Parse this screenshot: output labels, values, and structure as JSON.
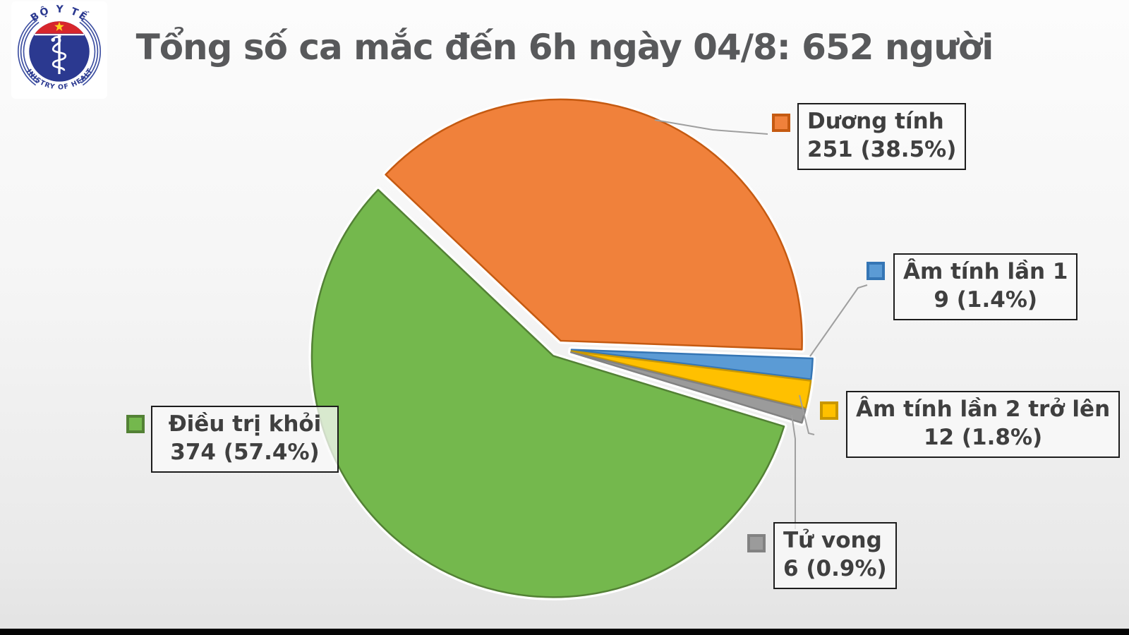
{
  "page": {
    "title": "Tổng số ca mắc đến 6h ngày 04/8: 652 người"
  },
  "logo": {
    "top_text": "BỘ Y TẾ",
    "bottom_text": "MINISTRY OF HEALTH",
    "star_color": "#FFD21E",
    "band_color": "#D7262C",
    "circle_color": "#2B3990"
  },
  "chart_data": {
    "type": "pie",
    "title": "Tổng số ca mắc đến 6h ngày 04/8: 652 người",
    "total": 652,
    "start_angle_deg": 136.5,
    "direction": "clockwise",
    "exploded": true,
    "legend_position": "callout-boxes",
    "legend_marker_shape": "square",
    "slices": [
      {
        "name": "duong-tinh",
        "label": "Dương tính",
        "value": 251,
        "pct": "38.5%",
        "value_text": "251 (38.5%)",
        "color": "#F0813B",
        "border": "#C55A11"
      },
      {
        "name": "am-tinh-lan-1",
        "label": "Âm tính lần 1",
        "value": 9,
        "pct": "1.4%",
        "value_text": "9 (1.4%)",
        "color": "#5B9BD5",
        "border": "#3576B5"
      },
      {
        "name": "am-tinh-lan-2",
        "label": "Âm tính lần 2 trở lên",
        "value": 12,
        "pct": "1.8%",
        "value_text": "12 (1.8%)",
        "color": "#FFC000",
        "border": "#C99700"
      },
      {
        "name": "tu-vong",
        "label": "Tử vong",
        "value": 6,
        "pct": "0.9%",
        "value_text": "6 (0.9%)",
        "color": "#9B9B9B",
        "border": "#828282"
      },
      {
        "name": "dieu-tri-khoi",
        "label": "Điều trị khỏi",
        "value": 374,
        "pct": "57.4%",
        "value_text": "374 (57.4%)",
        "color": "#74B84D",
        "border": "#538135"
      }
    ]
  }
}
